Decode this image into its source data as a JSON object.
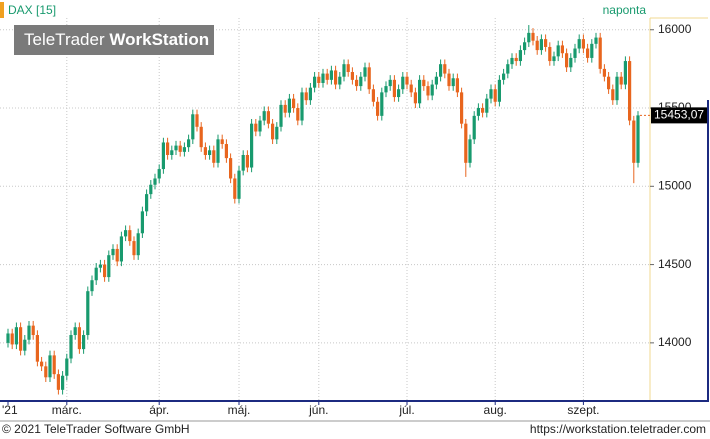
{
  "header": {
    "symbol": "DAX [15]",
    "interval": "naponta"
  },
  "watermark": {
    "brand": "TeleTrader",
    "product": "WorkStation"
  },
  "footer": {
    "copyright": "© 2021 TeleTrader Software GmbH",
    "url": "https://workstation.teletrader.com"
  },
  "chart_data": {
    "type": "candlestick",
    "categories": [
      "'21",
      null,
      null,
      null,
      null,
      null,
      null,
      null,
      null,
      null,
      null,
      null,
      null,
      null,
      "márc.",
      null,
      null,
      null,
      null,
      null,
      null,
      null,
      null,
      null,
      null,
      null,
      null,
      null,
      null,
      null,
      null,
      null,
      null,
      null,
      null,
      null,
      "ápr.",
      null,
      null,
      null,
      null,
      null,
      null,
      null,
      null,
      null,
      null,
      null,
      null,
      null,
      null,
      null,
      null,
      null,
      null,
      "máj.",
      null,
      null,
      null,
      null,
      null,
      null,
      null,
      null,
      null,
      null,
      null,
      null,
      null,
      null,
      null,
      null,
      null,
      null,
      "jún.",
      null,
      null,
      null,
      null,
      null,
      null,
      null,
      null,
      null,
      null,
      null,
      null,
      null,
      null,
      null,
      null,
      null,
      null,
      null,
      null,
      "júl.",
      null,
      null,
      null,
      null,
      null,
      null,
      null,
      null,
      null,
      null,
      null,
      null,
      null,
      null,
      null,
      null,
      null,
      null,
      null,
      null,
      "aug.",
      null,
      null,
      null,
      null,
      null,
      null,
      null,
      null,
      null,
      null,
      null,
      null,
      null,
      null,
      null,
      null,
      null,
      null,
      null,
      null,
      "szept.",
      null,
      null,
      null,
      null,
      null,
      null,
      null,
      null,
      null,
      null,
      null,
      null,
      null
    ],
    "open": [
      14000,
      14060,
      13990,
      14100,
      13950,
      14020,
      14110,
      14050,
      13880,
      13850,
      13780,
      13920,
      13800,
      13700,
      13790,
      13900,
      14050,
      14100,
      13960,
      14050,
      14330,
      14400,
      14480,
      14500,
      14420,
      14560,
      14600,
      14520,
      14680,
      14720,
      14650,
      14560,
      14700,
      14840,
      14950,
      15010,
      15050,
      15110,
      15280,
      15200,
      15230,
      15260,
      15220,
      15250,
      15300,
      15460,
      15380,
      15250,
      15200,
      15230,
      15150,
      15300,
      15270,
      15180,
      15050,
      14920,
      15100,
      15200,
      15120,
      15400,
      15350,
      15420,
      15480,
      15400,
      15300,
      15380,
      15520,
      15470,
      15560,
      15500,
      15420,
      15600,
      15550,
      15630,
      15700,
      15660,
      15720,
      15680,
      15740,
      15650,
      15700,
      15780,
      15730,
      15680,
      15640,
      15700,
      15760,
      15620,
      15540,
      15450,
      15600,
      15640,
      15680,
      15570,
      15620,
      15700,
      15650,
      15600,
      15530,
      15680,
      15640,
      15580,
      15650,
      15700,
      15780,
      15720,
      15640,
      15690,
      15600,
      15400,
      15150,
      15300,
      15450,
      15500,
      15470,
      15560,
      15620,
      15540,
      15680,
      15720,
      15780,
      15820,
      15800,
      15870,
      15920,
      15980,
      15930,
      15870,
      15940,
      15890,
      15800,
      15830,
      15900,
      15850,
      15760,
      15820,
      15880,
      15940,
      15880,
      15820,
      15910,
      15950,
      15750,
      15700,
      15620,
      15550,
      15700,
      15650,
      15800,
      15420,
      15150
    ],
    "high": [
      14090,
      14090,
      14130,
      14130,
      14050,
      14140,
      14140,
      14080,
      13910,
      13880,
      13950,
      13950,
      13830,
      13820,
      13930,
      14080,
      14130,
      14130,
      14080,
      14360,
      14430,
      14510,
      14530,
      14530,
      14590,
      14630,
      14630,
      14710,
      14750,
      14750,
      14680,
      14730,
      14870,
      14980,
      15040,
      15080,
      15140,
      15310,
      15310,
      15260,
      15290,
      15290,
      15280,
      15330,
      15490,
      15490,
      15410,
      15280,
      15260,
      15260,
      15330,
      15330,
      15300,
      15210,
      15080,
      15130,
      15230,
      15230,
      15430,
      15430,
      15450,
      15510,
      15510,
      15430,
      15410,
      15550,
      15550,
      15590,
      15590,
      15530,
      15630,
      15630,
      15660,
      15730,
      15730,
      15750,
      15750,
      15770,
      15770,
      15730,
      15810,
      15810,
      15760,
      15710,
      15730,
      15790,
      15790,
      15650,
      15570,
      15630,
      15670,
      15710,
      15710,
      15650,
      15730,
      15730,
      15680,
      15630,
      15710,
      15710,
      15670,
      15680,
      15730,
      15810,
      15810,
      15750,
      15720,
      15720,
      15630,
      15430,
      15330,
      15480,
      15530,
      15530,
      15590,
      15650,
      15650,
      15710,
      15750,
      15810,
      15850,
      15850,
      15900,
      15950,
      16030,
      16010,
      15960,
      15970,
      15970,
      15920,
      15860,
      15930,
      15930,
      15880,
      15850,
      15910,
      15970,
      15970,
      15910,
      15940,
      15980,
      15980,
      15780,
      15730,
      15650,
      15730,
      15730,
      15830,
      15830,
      15450,
      15480
    ],
    "low": [
      13970,
      13960,
      13960,
      13920,
      13920,
      13990,
      14020,
      13850,
      13820,
      13750,
      13750,
      13770,
      13670,
      13670,
      13760,
      13870,
      14020,
      13930,
      13930,
      14020,
      14300,
      14370,
      14450,
      14390,
      14390,
      14530,
      14490,
      14490,
      14650,
      14620,
      14530,
      14530,
      14670,
      14810,
      14920,
      14980,
      15020,
      15080,
      15170,
      15170,
      15200,
      15190,
      15190,
      15220,
      15270,
      15350,
      15220,
      15170,
      15170,
      15120,
      15120,
      15240,
      15150,
      15020,
      14890,
      14890,
      15070,
      15090,
      15090,
      15320,
      15320,
      15390,
      15370,
      15270,
      15270,
      15350,
      15440,
      15440,
      15470,
      15390,
      15390,
      15520,
      15520,
      15600,
      15630,
      15630,
      15650,
      15650,
      15620,
      15620,
      15670,
      15700,
      15650,
      15610,
      15610,
      15670,
      15590,
      15510,
      15420,
      15420,
      15570,
      15610,
      15540,
      15540,
      15590,
      15620,
      15570,
      15500,
      15500,
      15610,
      15550,
      15550,
      15620,
      15670,
      15690,
      15610,
      15610,
      15570,
      15370,
      15060,
      15120,
      15270,
      15420,
      15440,
      15440,
      15530,
      15510,
      15510,
      15650,
      15690,
      15750,
      15770,
      15770,
      15840,
      15890,
      15900,
      15840,
      15840,
      15860,
      15770,
      15770,
      15800,
      15820,
      15730,
      15730,
      15790,
      15850,
      15850,
      15790,
      15790,
      15880,
      15720,
      15670,
      15590,
      15520,
      15520,
      15620,
      15620,
      15390,
      15020,
      15120
    ],
    "close": [
      14060,
      13990,
      14100,
      13950,
      14020,
      14110,
      14050,
      13880,
      13850,
      13780,
      13920,
      13800,
      13700,
      13790,
      13900,
      14050,
      14100,
      13960,
      14050,
      14330,
      14400,
      14480,
      14500,
      14420,
      14560,
      14600,
      14520,
      14680,
      14720,
      14650,
      14560,
      14700,
      14840,
      14950,
      15010,
      15050,
      15110,
      15280,
      15200,
      15230,
      15260,
      15220,
      15250,
      15300,
      15460,
      15380,
      15250,
      15200,
      15230,
      15150,
      15300,
      15270,
      15180,
      15050,
      14920,
      15100,
      15200,
      15120,
      15400,
      15350,
      15420,
      15480,
      15400,
      15300,
      15380,
      15520,
      15470,
      15560,
      15500,
      15420,
      15600,
      15550,
      15630,
      15700,
      15660,
      15720,
      15680,
      15740,
      15650,
      15700,
      15780,
      15730,
      15680,
      15640,
      15700,
      15760,
      15620,
      15540,
      15450,
      15600,
      15640,
      15680,
      15570,
      15620,
      15700,
      15650,
      15600,
      15530,
      15680,
      15640,
      15580,
      15650,
      15700,
      15780,
      15720,
      15640,
      15690,
      15600,
      15400,
      15150,
      15300,
      15450,
      15500,
      15470,
      15560,
      15620,
      15540,
      15680,
      15720,
      15780,
      15820,
      15800,
      15870,
      15920,
      15980,
      15930,
      15870,
      15940,
      15890,
      15800,
      15830,
      15900,
      15850,
      15760,
      15820,
      15880,
      15940,
      15880,
      15820,
      15910,
      15950,
      15750,
      15700,
      15620,
      15550,
      15700,
      15650,
      15800,
      15420,
      15150,
      15453.07
    ],
    "last_price_label": "15453,07",
    "up_color": "#189a6e",
    "down_color": "#e8651e",
    "ylim": [
      13635,
      16190
    ],
    "yticks": [
      14000,
      14500,
      15000,
      15500,
      16000
    ],
    "grid": true
  }
}
